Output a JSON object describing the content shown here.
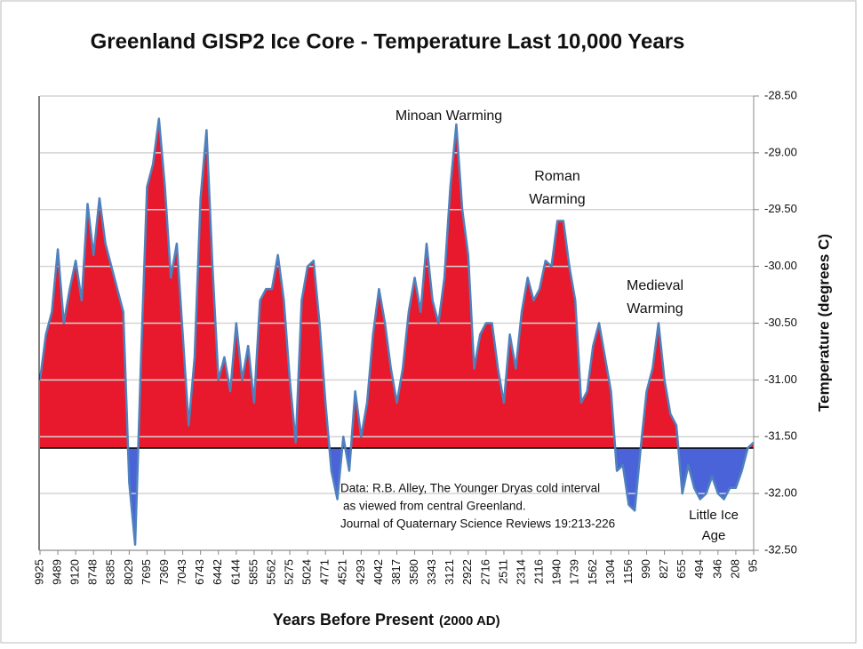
{
  "chart_data": {
    "type": "area",
    "title": "Greenland GISP2 Ice Core - Temperature  Last 10,000 Years",
    "xlabel": "Years Before Present",
    "xlabel_note": "(2000 AD)",
    "ylabel": "Temperature (degrees C)",
    "categories": [
      "9925",
      null,
      null,
      "9489",
      null,
      null,
      "9120",
      null,
      null,
      "8748",
      null,
      null,
      "8385",
      null,
      null,
      "8029",
      null,
      null,
      "7695",
      null,
      null,
      "7369",
      null,
      null,
      "7043",
      null,
      null,
      "6743",
      null,
      null,
      "6442",
      null,
      null,
      "6144",
      null,
      null,
      "5855",
      null,
      null,
      "5562",
      null,
      null,
      "5275",
      null,
      null,
      "5024",
      null,
      null,
      "4771",
      null,
      null,
      "4521",
      null,
      null,
      "4293",
      null,
      null,
      "4042",
      null,
      null,
      "3817",
      null,
      null,
      "3580",
      null,
      null,
      "3343",
      null,
      null,
      "3121",
      null,
      null,
      "2922",
      null,
      null,
      "2716",
      null,
      null,
      "2511",
      null,
      null,
      "2314",
      null,
      null,
      "2116",
      null,
      null,
      "1940",
      null,
      null,
      "1739",
      null,
      null,
      "1562",
      null,
      null,
      "1304",
      null,
      null,
      "1156",
      null,
      null,
      "990",
      null,
      null,
      "827",
      null,
      null,
      "655",
      null,
      null,
      "494",
      null,
      null,
      "346",
      null,
      null,
      "208",
      null,
      null,
      "95"
    ],
    "values": [
      -31.0,
      -30.6,
      -30.4,
      -29.85,
      -30.5,
      -30.2,
      -29.95,
      -30.3,
      -29.45,
      -29.9,
      -29.4,
      -29.8,
      -30.0,
      -30.2,
      -30.4,
      -31.9,
      -32.45,
      -30.8,
      -29.3,
      -29.1,
      -28.7,
      -29.3,
      -30.1,
      -29.8,
      -30.6,
      -31.4,
      -30.8,
      -29.4,
      -28.8,
      -30.0,
      -31.0,
      -30.8,
      -31.1,
      -30.5,
      -31.0,
      -30.7,
      -31.2,
      -30.3,
      -30.2,
      -30.2,
      -29.9,
      -30.3,
      -31.0,
      -31.55,
      -30.3,
      -30.0,
      -29.95,
      -30.5,
      -31.2,
      -31.8,
      -32.05,
      -31.5,
      -31.8,
      -31.1,
      -31.5,
      -31.2,
      -30.6,
      -30.2,
      -30.5,
      -30.9,
      -31.2,
      -30.9,
      -30.4,
      -30.1,
      -30.4,
      -29.8,
      -30.3,
      -30.5,
      -30.1,
      -29.3,
      -28.75,
      -29.5,
      -29.9,
      -30.9,
      -30.6,
      -30.5,
      -30.5,
      -30.9,
      -31.2,
      -30.6,
      -30.9,
      -30.4,
      -30.1,
      -30.3,
      -30.2,
      -29.95,
      -30.0,
      -29.6,
      -29.6,
      -30.0,
      -30.3,
      -31.2,
      -31.1,
      -30.7,
      -30.5,
      -30.8,
      -31.1,
      -31.8,
      -31.75,
      -32.1,
      -32.15,
      -31.6,
      -31.1,
      -30.9,
      -30.5,
      -31.0,
      -31.3,
      -31.4,
      -32.0,
      -31.75,
      -31.95,
      -32.05,
      -32.0,
      -31.85,
      -32.0,
      -32.05,
      -31.95,
      -31.95,
      -31.8,
      -31.6,
      -31.55
    ],
    "line_color": "#4f81bd",
    "fill_above": "#e8192c",
    "fill_below": "#4a63d8",
    "baseline": -31.6,
    "ylim": [
      -32.5,
      -28.5
    ],
    "yticks": [
      {
        "value": -28.5,
        "label": "-28.50"
      },
      {
        "value": -29,
        "label": "-29.00"
      },
      {
        "value": -29.5,
        "label": "-29.50"
      },
      {
        "value": -30,
        "label": "-30.00"
      },
      {
        "value": -30.5,
        "label": "-30.50"
      },
      {
        "value": -31,
        "label": "-31.00"
      },
      {
        "value": -31.5,
        "label": "-31.50"
      },
      {
        "value": -32,
        "label": "-32.00"
      },
      {
        "value": -32.5,
        "label": "-32.50"
      }
    ],
    "grid": true,
    "annotations": [
      [
        "Minoan Warming"
      ],
      [
        "Roman",
        "Warming"
      ],
      [
        "Medieval",
        "Warming"
      ],
      [
        "Little Ice",
        "Age"
      ],
      [
        "Data: R.B. Alley,  The Younger Dryas cold interval",
        "as viewed from central Greenland.",
        "Journal of Quaternary  Science Reviews 19:213-226"
      ]
    ]
  }
}
